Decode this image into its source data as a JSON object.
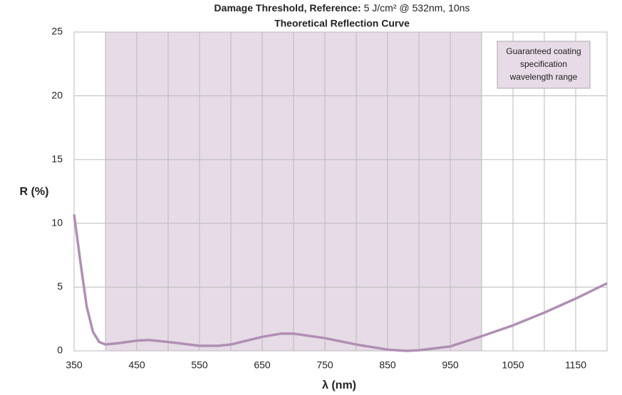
{
  "chart_data": {
    "type": "line",
    "title": "Damage Threshold, Reference:",
    "title_value": "5 J/cm² @ 532nm, 10ns",
    "subtitle": "Theoretical Reflection Curve",
    "x_label": "λ (nm)",
    "y_label": "R (%)",
    "annotation": [
      "Guaranteed coating",
      "specification",
      "wavelength range"
    ],
    "shaded_range": [
      400,
      1000
    ],
    "shade_color": "#e6dbe6",
    "x": [
      350,
      360,
      370,
      380,
      390,
      400,
      420,
      450,
      470,
      500,
      550,
      580,
      600,
      650,
      680,
      700,
      750,
      800,
      850,
      880,
      900,
      950,
      1000,
      1050,
      1100,
      1150,
      1200
    ],
    "series": [
      {
        "color": "#b08fb4",
        "values": [
          10.7,
          7.0,
          3.5,
          1.5,
          0.7,
          0.5,
          0.6,
          0.8,
          0.85,
          0.7,
          0.4,
          0.4,
          0.5,
          1.1,
          1.35,
          1.35,
          1.0,
          0.5,
          0.1,
          0.0,
          0.05,
          0.35,
          1.15,
          2.0,
          3.0,
          4.1,
          5.3
        ]
      }
    ],
    "xlim": [
      350,
      1200
    ],
    "xticks": [
      350,
      450,
      550,
      650,
      750,
      850,
      950,
      1050,
      1150
    ],
    "xgrid": [
      400,
      450,
      500,
      550,
      600,
      650,
      700,
      750,
      800,
      850,
      900,
      950,
      1000,
      1050,
      1100,
      1150
    ],
    "ylim": [
      0,
      25
    ],
    "yticks": [
      0,
      5,
      10,
      15,
      20,
      25
    ],
    "grid": true
  }
}
